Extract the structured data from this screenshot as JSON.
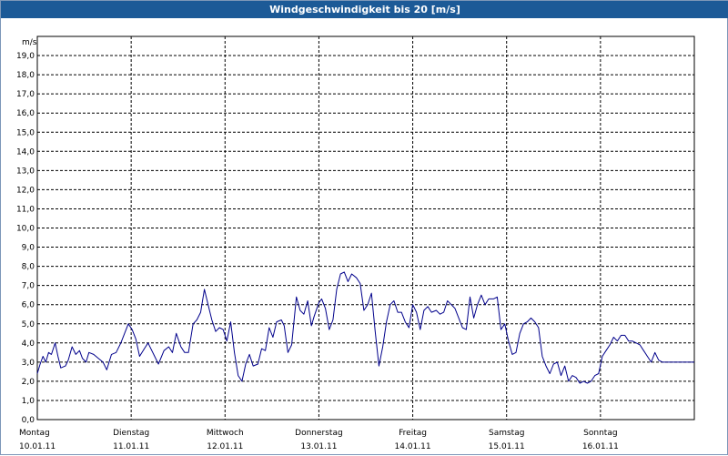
{
  "window": {
    "title": "Windgeschwindigkeit bis 20 [m/s]"
  },
  "colors": {
    "title_bar": "#1c5a97",
    "series_line": "#00008b",
    "grid": "#000000",
    "background": "#ffffff"
  },
  "chart_data": {
    "type": "line",
    "title": "Windgeschwindigkeit bis 20 [m/s]",
    "ylabel": "m/s",
    "xlabel": "",
    "ylim": [
      0,
      20
    ],
    "y_ticks": [
      "0,0",
      "1,0",
      "2,0",
      "3,0",
      "4,0",
      "5,0",
      "6,0",
      "7,0",
      "8,0",
      "9,0",
      "10,0",
      "11,0",
      "12,0",
      "13,0",
      "14,0",
      "15,0",
      "16,0",
      "17,0",
      "18,0",
      "19,0"
    ],
    "x_range_days": [
      0,
      7
    ],
    "x_ticks": [
      {
        "day": "Montag",
        "date": "10.01.11"
      },
      {
        "day": "Dienstag",
        "date": "11.01.11"
      },
      {
        "day": "Mittwoch",
        "date": "12.01.11"
      },
      {
        "day": "Donnerstag",
        "date": "13.01.11"
      },
      {
        "day": "Freitag",
        "date": "14.01.11"
      },
      {
        "day": "Samstag",
        "date": "15.01.11"
      },
      {
        "day": "Sonntag",
        "date": "16.01.11"
      }
    ],
    "grid": true,
    "series": [
      {
        "name": "Windgeschwindigkeit",
        "x_days": [
          0.0,
          0.03,
          0.06,
          0.09,
          0.12,
          0.15,
          0.19,
          0.22,
          0.25,
          0.3,
          0.33,
          0.37,
          0.41,
          0.45,
          0.48,
          0.52,
          0.55,
          0.6,
          0.65,
          0.7,
          0.74,
          0.79,
          0.84,
          0.89,
          0.93,
          0.97,
          1.01,
          1.05,
          1.09,
          1.14,
          1.18,
          1.24,
          1.29,
          1.35,
          1.4,
          1.44,
          1.48,
          1.53,
          1.57,
          1.61,
          1.66,
          1.7,
          1.74,
          1.78,
          1.82,
          1.86,
          1.9,
          1.94,
          1.98,
          2.02,
          2.06,
          2.1,
          2.14,
          2.18,
          2.22,
          2.26,
          2.3,
          2.35,
          2.39,
          2.43,
          2.47,
          2.51,
          2.55,
          2.6,
          2.63,
          2.67,
          2.71,
          2.76,
          2.8,
          2.84,
          2.88,
          2.92,
          2.95,
          3.0,
          3.03,
          3.07,
          3.11,
          3.15,
          3.19,
          3.23,
          3.27,
          3.31,
          3.35,
          3.4,
          3.44,
          3.48,
          3.52,
          3.56,
          3.6,
          3.64,
          3.68,
          3.72,
          3.76,
          3.8,
          3.84,
          3.88,
          3.92,
          3.96,
          4.0,
          4.04,
          4.08,
          4.12,
          4.16,
          4.2,
          4.25,
          4.29,
          4.33,
          4.37,
          4.41,
          4.45,
          4.49,
          4.53,
          4.57,
          4.61,
          4.65,
          4.69,
          4.73,
          4.77,
          4.81,
          4.86,
          4.9,
          4.94,
          4.98,
          5.02,
          5.06,
          5.1,
          5.14,
          5.18,
          5.22,
          5.26,
          5.3,
          5.34,
          5.38,
          5.42,
          5.46,
          5.5,
          5.54,
          5.58,
          5.62,
          5.66,
          5.7,
          5.74,
          5.78,
          5.82,
          5.86,
          5.9,
          5.94,
          5.98,
          6.02,
          6.06,
          6.1,
          6.14,
          6.18,
          6.22,
          6.26,
          6.3,
          6.34,
          6.38,
          6.42,
          6.46,
          6.5,
          6.54,
          6.58,
          6.62,
          6.66,
          6.7,
          6.74,
          6.78,
          6.82,
          6.86,
          6.9,
          6.94,
          6.98,
          7.0
        ],
        "values": [
          2.4,
          2.9,
          3.3,
          3.0,
          3.5,
          3.4,
          4.0,
          3.3,
          2.7,
          2.8,
          3.1,
          3.8,
          3.4,
          3.6,
          3.2,
          3.0,
          3.5,
          3.4,
          3.2,
          3.0,
          2.6,
          3.4,
          3.5,
          4.0,
          4.5,
          5.0,
          4.7,
          4.2,
          3.3,
          3.7,
          4.0,
          3.4,
          2.9,
          3.6,
          3.8,
          3.5,
          4.5,
          3.8,
          3.5,
          3.5,
          5.0,
          5.2,
          5.6,
          6.8,
          6.0,
          5.2,
          4.6,
          4.8,
          4.7,
          4.1,
          5.1,
          3.5,
          2.3,
          2.0,
          2.9,
          3.4,
          2.8,
          2.9,
          3.7,
          3.6,
          4.8,
          4.3,
          5.1,
          5.2,
          4.9,
          3.5,
          3.9,
          6.4,
          5.7,
          5.5,
          6.2,
          4.9,
          5.4,
          6.1,
          6.3,
          5.8,
          4.7,
          5.2,
          6.8,
          7.6,
          7.7,
          7.2,
          7.6,
          7.4,
          7.1,
          5.7,
          6.0,
          6.6,
          4.6,
          2.8,
          3.8,
          5.1,
          6.0,
          6.2,
          5.6,
          5.6,
          5.1,
          4.8,
          6.0,
          5.6,
          4.7,
          5.7,
          5.9,
          5.6,
          5.7,
          5.5,
          5.6,
          6.2,
          6.0,
          5.8,
          5.3,
          4.8,
          4.7,
          6.4,
          5.3,
          6.0,
          6.5,
          6.0,
          6.3,
          6.3,
          6.4,
          4.7,
          5.0,
          4.1,
          3.4,
          3.5,
          4.5,
          5.0,
          5.1,
          5.3,
          5.1,
          4.8,
          3.3,
          2.8,
          2.4,
          2.9,
          3.0,
          2.3,
          2.8,
          2.0,
          2.3,
          2.2,
          1.9,
          2.0,
          1.9,
          2.0,
          2.3,
          2.4,
          3.3,
          3.6,
          3.9,
          4.3,
          4.1,
          4.4,
          4.4,
          4.1,
          4.1,
          4.0,
          3.9,
          3.6,
          3.3,
          3.0,
          3.5,
          3.1,
          3.0,
          3.0,
          3.0,
          3.0,
          3.0,
          3.0,
          3.0,
          3.0,
          3.0,
          3.0
        ]
      }
    ]
  }
}
